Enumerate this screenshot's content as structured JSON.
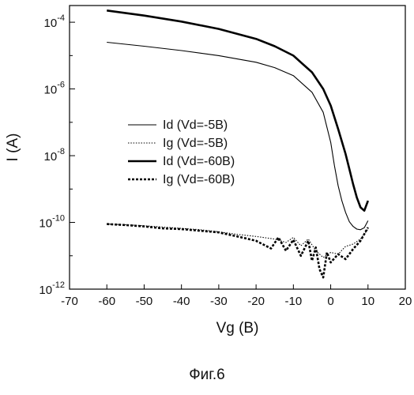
{
  "chart_data": {
    "type": "line",
    "xlabel": "Vg (B)",
    "ylabel": "I (A)",
    "xlim": [
      -70,
      20
    ],
    "ylim": [
      -12,
      -3.5
    ],
    "y_scale": "log",
    "x_ticks": [
      "-70",
      "-60",
      "-50",
      "-40",
      "-30",
      "-20",
      "-10",
      "0",
      "10",
      "20"
    ],
    "y_ticks": [
      {
        "value": -4,
        "base": "10",
        "exp": "-4"
      },
      {
        "value": -6,
        "base": "10",
        "exp": "-6"
      },
      {
        "value": -8,
        "base": "10",
        "exp": "-8"
      },
      {
        "value": -10,
        "base": "10",
        "exp": "-10"
      },
      {
        "value": -12,
        "base": "10",
        "exp": "-12"
      }
    ],
    "grid": false,
    "legend_position": "center-left",
    "series": [
      {
        "name": "Id (Vd=-5B)",
        "style": "thin-solid",
        "x": [
          -60,
          -50,
          -40,
          -30,
          -20,
          -15,
          -10,
          -5,
          -2,
          0,
          1,
          2,
          3,
          4,
          5,
          6,
          7,
          8,
          9,
          10
        ],
        "log10_y": [
          -4.6,
          -4.72,
          -4.85,
          -5.0,
          -5.2,
          -5.36,
          -5.6,
          -6.1,
          -6.7,
          -7.6,
          -8.3,
          -8.9,
          -9.35,
          -9.7,
          -9.98,
          -10.12,
          -10.2,
          -10.22,
          -10.16,
          -9.95
        ]
      },
      {
        "name": "Ig (Vd=-5B)",
        "style": "thin-dotted",
        "x": [
          -60,
          -55,
          -50,
          -45,
          -40,
          -35,
          -30,
          -25,
          -20,
          -15,
          -12,
          -10,
          -8,
          -6,
          -4,
          -2,
          0,
          2,
          4,
          6,
          8,
          10
        ],
        "log10_y": [
          -10.05,
          -10.07,
          -10.1,
          -10.14,
          -10.18,
          -10.22,
          -10.28,
          -10.36,
          -10.42,
          -10.5,
          -10.6,
          -10.45,
          -10.7,
          -10.5,
          -10.85,
          -11.05,
          -10.9,
          -10.95,
          -10.72,
          -10.65,
          -10.5,
          -10.2
        ]
      },
      {
        "name": "Id (Vd=-60B)",
        "style": "thick-solid",
        "x": [
          -60,
          -50,
          -40,
          -30,
          -20,
          -15,
          -10,
          -5,
          -2,
          0,
          2,
          4,
          5,
          6,
          7,
          8,
          9,
          10
        ],
        "log10_y": [
          -3.65,
          -3.8,
          -3.98,
          -4.2,
          -4.5,
          -4.72,
          -5.0,
          -5.5,
          -6.0,
          -6.5,
          -7.2,
          -7.95,
          -8.4,
          -8.85,
          -9.25,
          -9.55,
          -9.65,
          -9.35
        ]
      },
      {
        "name": "Ig (Vd=-60B)",
        "style": "thick-dashed",
        "x": [
          -60,
          -55,
          -50,
          -45,
          -40,
          -35,
          -30,
          -25,
          -22,
          -20,
          -16,
          -14,
          -12,
          -10,
          -8,
          -6,
          -5,
          -4,
          -3,
          -2,
          -1,
          0,
          2,
          4,
          6,
          8,
          10
        ],
        "log10_y": [
          -10.05,
          -10.08,
          -10.12,
          -10.18,
          -10.2,
          -10.25,
          -10.3,
          -10.42,
          -10.5,
          -10.55,
          -10.78,
          -10.45,
          -10.85,
          -10.52,
          -11.0,
          -10.55,
          -11.15,
          -10.75,
          -11.4,
          -11.65,
          -10.9,
          -11.2,
          -10.95,
          -11.1,
          -10.8,
          -10.55,
          -10.15
        ]
      }
    ]
  },
  "figure": {
    "caption": "Фиг.6"
  }
}
